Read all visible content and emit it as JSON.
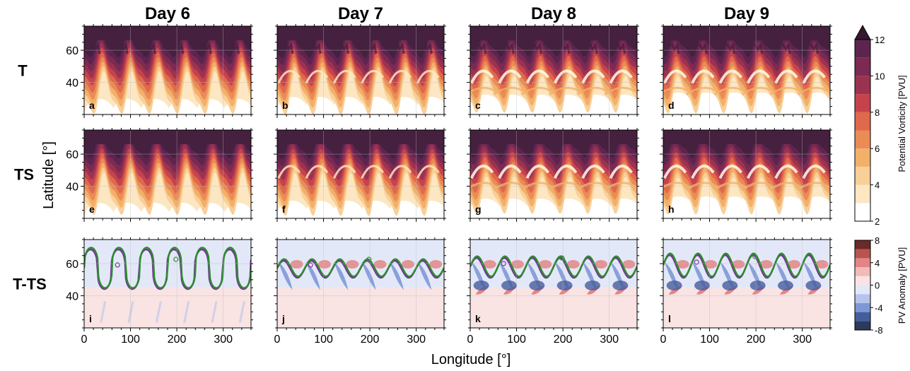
{
  "figure": {
    "columns": [
      "Day 6",
      "Day 7",
      "Day 8",
      "Day 9"
    ],
    "rows": [
      "T",
      "TS",
      "T-TS"
    ],
    "panel_letters": [
      "a",
      "b",
      "c",
      "d",
      "e",
      "f",
      "g",
      "h",
      "i",
      "j",
      "k",
      "l"
    ],
    "ylabel": "Latitude [°]",
    "xlabel": "Longitude [°]"
  },
  "colorbars": {
    "pv": {
      "label": "Potential Vorticity [PVU]",
      "ticks": [
        "12",
        "10",
        "8",
        "6",
        "4",
        "2"
      ],
      "levels": [
        2,
        3,
        4,
        5,
        6,
        7,
        8,
        9,
        10,
        11,
        12
      ],
      "colors": [
        "#ffffff",
        "#fde6c2",
        "#f9cf98",
        "#f2b06a",
        "#eb8b56",
        "#e0684b",
        "#c6434e",
        "#9b3350",
        "#7b2a52",
        "#5e2450",
        "#45203f"
      ]
    },
    "anom": {
      "label": "PV Anomaly [PVU]",
      "ticks": [
        "8",
        "4",
        "0",
        "-4",
        "-8"
      ],
      "colors": [
        "#2c3a5e",
        "#455d9c",
        "#7e98d6",
        "#b5c4ec",
        "#e3e8f8",
        "#f9e3e3",
        "#f2baba",
        "#e38585",
        "#b85450",
        "#6b2a28"
      ]
    }
  },
  "chart_data": {
    "type": "heatmap",
    "xlim": [
      0,
      360
    ],
    "ylim": [
      20,
      75
    ],
    "xticks": [
      "0",
      "100",
      "200",
      "300"
    ],
    "yticks": [
      "40",
      "60"
    ],
    "grid": true,
    "wave_number": 6,
    "contour_colors": {
      "purple": "#7b2ea0",
      "green": "#2e8b2e"
    }
  }
}
